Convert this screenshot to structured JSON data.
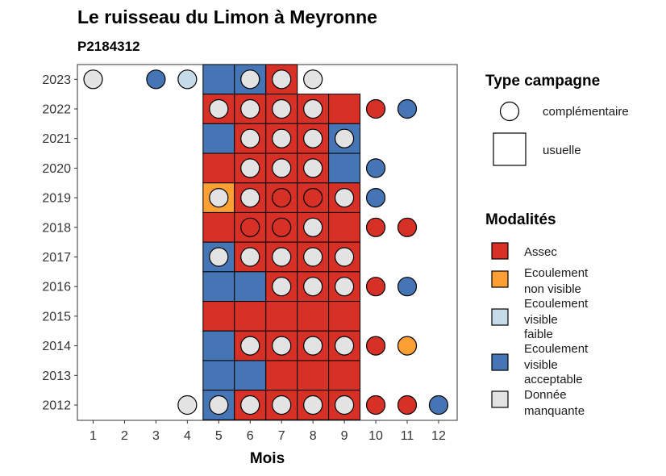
{
  "chart_data": {
    "type": "heatmap",
    "title": "Le ruisseau du Limon à Meyronne",
    "subtitle": "P2184312",
    "xlabel": "Mois",
    "ylabel": "",
    "x_ticks": [
      "1",
      "2",
      "3",
      "4",
      "5",
      "6",
      "7",
      "8",
      "9",
      "10",
      "11",
      "12"
    ],
    "y_ticks": [
      "2012",
      "2013",
      "2014",
      "2015",
      "2016",
      "2017",
      "2018",
      "2019",
      "2020",
      "2021",
      "2022",
      "2023"
    ],
    "xlim": [
      0.5,
      12.5
    ],
    "ylim": [
      2011.5,
      2023.5
    ],
    "grid": false,
    "legend_placement": "right",
    "colors": {
      "Assec": "#d73027",
      "Ecoulement non visible": "#fd9f33",
      "Ecoulement visible faible": "#c6dbe8",
      "Ecoulement visible acceptable": "#4575b4",
      "Donnée manquante": "#e3e3e3"
    },
    "legend_type": {
      "title": "Type campagne",
      "items": [
        {
          "label": "complémentaire",
          "shape": "circle"
        },
        {
          "label": "usuelle",
          "shape": "square"
        }
      ]
    },
    "legend_modalites": {
      "title": "Modalités",
      "items": [
        {
          "key": "Assec",
          "lines": [
            "Assec"
          ]
        },
        {
          "key": "Ecoulement non visible",
          "lines": [
            "Ecoulement",
            "non visible"
          ]
        },
        {
          "key": "Ecoulement visible faible",
          "lines": [
            "Ecoulement",
            "visible",
            "faible"
          ]
        },
        {
          "key": "Ecoulement visible acceptable",
          "lines": [
            "Ecoulement",
            "visible",
            "acceptable"
          ]
        },
        {
          "key": "Donnée manquante",
          "lines": [
            "Donnée",
            "manquante"
          ]
        }
      ]
    },
    "usuelle": [
      {
        "year": 2023,
        "month": 5,
        "value": "Ecoulement visible acceptable"
      },
      {
        "year": 2023,
        "month": 6,
        "value": "Ecoulement visible acceptable"
      },
      {
        "year": 2023,
        "month": 7,
        "value": "Assec"
      },
      {
        "year": 2022,
        "month": 5,
        "value": "Assec"
      },
      {
        "year": 2022,
        "month": 6,
        "value": "Assec"
      },
      {
        "year": 2022,
        "month": 7,
        "value": "Assec"
      },
      {
        "year": 2022,
        "month": 8,
        "value": "Assec"
      },
      {
        "year": 2022,
        "month": 9,
        "value": "Assec"
      },
      {
        "year": 2021,
        "month": 5,
        "value": "Ecoulement visible acceptable"
      },
      {
        "year": 2021,
        "month": 6,
        "value": "Assec"
      },
      {
        "year": 2021,
        "month": 7,
        "value": "Assec"
      },
      {
        "year": 2021,
        "month": 8,
        "value": "Assec"
      },
      {
        "year": 2021,
        "month": 9,
        "value": "Ecoulement visible acceptable"
      },
      {
        "year": 2020,
        "month": 5,
        "value": "Assec"
      },
      {
        "year": 2020,
        "month": 6,
        "value": "Assec"
      },
      {
        "year": 2020,
        "month": 7,
        "value": "Assec"
      },
      {
        "year": 2020,
        "month": 8,
        "value": "Assec"
      },
      {
        "year": 2020,
        "month": 9,
        "value": "Ecoulement visible acceptable"
      },
      {
        "year": 2019,
        "month": 5,
        "value": "Ecoulement non visible"
      },
      {
        "year": 2019,
        "month": 6,
        "value": "Assec"
      },
      {
        "year": 2019,
        "month": 7,
        "value": "Assec"
      },
      {
        "year": 2019,
        "month": 8,
        "value": "Assec"
      },
      {
        "year": 2019,
        "month": 9,
        "value": "Assec"
      },
      {
        "year": 2018,
        "month": 5,
        "value": "Assec"
      },
      {
        "year": 2018,
        "month": 6,
        "value": "Assec"
      },
      {
        "year": 2018,
        "month": 7,
        "value": "Assec"
      },
      {
        "year": 2018,
        "month": 8,
        "value": "Assec"
      },
      {
        "year": 2018,
        "month": 9,
        "value": "Assec"
      },
      {
        "year": 2017,
        "month": 5,
        "value": "Ecoulement visible acceptable"
      },
      {
        "year": 2017,
        "month": 6,
        "value": "Assec"
      },
      {
        "year": 2017,
        "month": 7,
        "value": "Assec"
      },
      {
        "year": 2017,
        "month": 8,
        "value": "Assec"
      },
      {
        "year": 2017,
        "month": 9,
        "value": "Assec"
      },
      {
        "year": 2016,
        "month": 5,
        "value": "Ecoulement visible acceptable"
      },
      {
        "year": 2016,
        "month": 6,
        "value": "Ecoulement visible acceptable"
      },
      {
        "year": 2016,
        "month": 7,
        "value": "Assec"
      },
      {
        "year": 2016,
        "month": 8,
        "value": "Assec"
      },
      {
        "year": 2016,
        "month": 9,
        "value": "Assec"
      },
      {
        "year": 2015,
        "month": 5,
        "value": "Assec"
      },
      {
        "year": 2015,
        "month": 6,
        "value": "Assec"
      },
      {
        "year": 2015,
        "month": 7,
        "value": "Assec"
      },
      {
        "year": 2015,
        "month": 8,
        "value": "Assec"
      },
      {
        "year": 2015,
        "month": 9,
        "value": "Assec"
      },
      {
        "year": 2014,
        "month": 5,
        "value": "Ecoulement visible acceptable"
      },
      {
        "year": 2014,
        "month": 6,
        "value": "Assec"
      },
      {
        "year": 2014,
        "month": 7,
        "value": "Assec"
      },
      {
        "year": 2014,
        "month": 8,
        "value": "Assec"
      },
      {
        "year": 2014,
        "month": 9,
        "value": "Assec"
      },
      {
        "year": 2013,
        "month": 5,
        "value": "Ecoulement visible acceptable"
      },
      {
        "year": 2013,
        "month": 6,
        "value": "Ecoulement visible acceptable"
      },
      {
        "year": 2013,
        "month": 7,
        "value": "Assec"
      },
      {
        "year": 2013,
        "month": 8,
        "value": "Assec"
      },
      {
        "year": 2013,
        "month": 9,
        "value": "Assec"
      },
      {
        "year": 2012,
        "month": 5,
        "value": "Ecoulement visible acceptable"
      },
      {
        "year": 2012,
        "month": 6,
        "value": "Assec"
      },
      {
        "year": 2012,
        "month": 7,
        "value": "Assec"
      },
      {
        "year": 2012,
        "month": 8,
        "value": "Assec"
      },
      {
        "year": 2012,
        "month": 9,
        "value": "Assec"
      }
    ],
    "complementaire": [
      {
        "year": 2023,
        "month": 1,
        "value": "Donnée manquante"
      },
      {
        "year": 2023,
        "month": 3,
        "value": "Ecoulement visible acceptable"
      },
      {
        "year": 2023,
        "month": 4,
        "value": "Ecoulement visible faible"
      },
      {
        "year": 2023,
        "month": 6,
        "value": "Donnée manquante"
      },
      {
        "year": 2023,
        "month": 7,
        "value": "Donnée manquante"
      },
      {
        "year": 2023,
        "month": 8,
        "value": "Donnée manquante"
      },
      {
        "year": 2022,
        "month": 5,
        "value": "Donnée manquante"
      },
      {
        "year": 2022,
        "month": 6,
        "value": "Donnée manquante"
      },
      {
        "year": 2022,
        "month": 7,
        "value": "Donnée manquante"
      },
      {
        "year": 2022,
        "month": 8,
        "value": "Donnée manquante"
      },
      {
        "year": 2022,
        "month": 10,
        "value": "Assec"
      },
      {
        "year": 2022,
        "month": 11,
        "value": "Ecoulement visible acceptable"
      },
      {
        "year": 2021,
        "month": 6,
        "value": "Donnée manquante"
      },
      {
        "year": 2021,
        "month": 7,
        "value": "Donnée manquante"
      },
      {
        "year": 2021,
        "month": 8,
        "value": "Donnée manquante"
      },
      {
        "year": 2021,
        "month": 9,
        "value": "Donnée manquante"
      },
      {
        "year": 2020,
        "month": 6,
        "value": "Donnée manquante"
      },
      {
        "year": 2020,
        "month": 7,
        "value": "Donnée manquante"
      },
      {
        "year": 2020,
        "month": 8,
        "value": "Donnée manquante"
      },
      {
        "year": 2020,
        "month": 10,
        "value": "Ecoulement visible acceptable"
      },
      {
        "year": 2019,
        "month": 5,
        "value": "Donnée manquante"
      },
      {
        "year": 2019,
        "month": 6,
        "value": "Donnée manquante"
      },
      {
        "year": 2019,
        "month": 7,
        "value": "Assec"
      },
      {
        "year": 2019,
        "month": 8,
        "value": "Assec"
      },
      {
        "year": 2019,
        "month": 9,
        "value": "Donnée manquante"
      },
      {
        "year": 2019,
        "month": 10,
        "value": "Ecoulement visible acceptable"
      },
      {
        "year": 2018,
        "month": 6,
        "value": "Assec"
      },
      {
        "year": 2018,
        "month": 7,
        "value": "Assec"
      },
      {
        "year": 2018,
        "month": 8,
        "value": "Donnée manquante"
      },
      {
        "year": 2018,
        "month": 10,
        "value": "Assec"
      },
      {
        "year": 2018,
        "month": 11,
        "value": "Assec"
      },
      {
        "year": 2017,
        "month": 5,
        "value": "Donnée manquante"
      },
      {
        "year": 2017,
        "month": 6,
        "value": "Donnée manquante"
      },
      {
        "year": 2017,
        "month": 7,
        "value": "Donnée manquante"
      },
      {
        "year": 2017,
        "month": 8,
        "value": "Donnée manquante"
      },
      {
        "year": 2017,
        "month": 9,
        "value": "Donnée manquante"
      },
      {
        "year": 2016,
        "month": 7,
        "value": "Donnée manquante"
      },
      {
        "year": 2016,
        "month": 8,
        "value": "Donnée manquante"
      },
      {
        "year": 2016,
        "month": 9,
        "value": "Donnée manquante"
      },
      {
        "year": 2016,
        "month": 10,
        "value": "Assec"
      },
      {
        "year": 2016,
        "month": 11,
        "value": "Ecoulement visible acceptable"
      },
      {
        "year": 2014,
        "month": 6,
        "value": "Donnée manquante"
      },
      {
        "year": 2014,
        "month": 7,
        "value": "Donnée manquante"
      },
      {
        "year": 2014,
        "month": 8,
        "value": "Donnée manquante"
      },
      {
        "year": 2014,
        "month": 9,
        "value": "Donnée manquante"
      },
      {
        "year": 2014,
        "month": 10,
        "value": "Assec"
      },
      {
        "year": 2014,
        "month": 11,
        "value": "Ecoulement non visible"
      },
      {
        "year": 2012,
        "month": 4,
        "value": "Donnée manquante"
      },
      {
        "year": 2012,
        "month": 5,
        "value": "Donnée manquante"
      },
      {
        "year": 2012,
        "month": 6,
        "value": "Donnée manquante"
      },
      {
        "year": 2012,
        "month": 7,
        "value": "Donnée manquante"
      },
      {
        "year": 2012,
        "month": 8,
        "value": "Donnée manquante"
      },
      {
        "year": 2012,
        "month": 9,
        "value": "Donnée manquante"
      },
      {
        "year": 2012,
        "month": 10,
        "value": "Assec"
      },
      {
        "year": 2012,
        "month": 11,
        "value": "Assec"
      },
      {
        "year": 2012,
        "month": 12,
        "value": "Ecoulement visible acceptable"
      }
    ]
  }
}
